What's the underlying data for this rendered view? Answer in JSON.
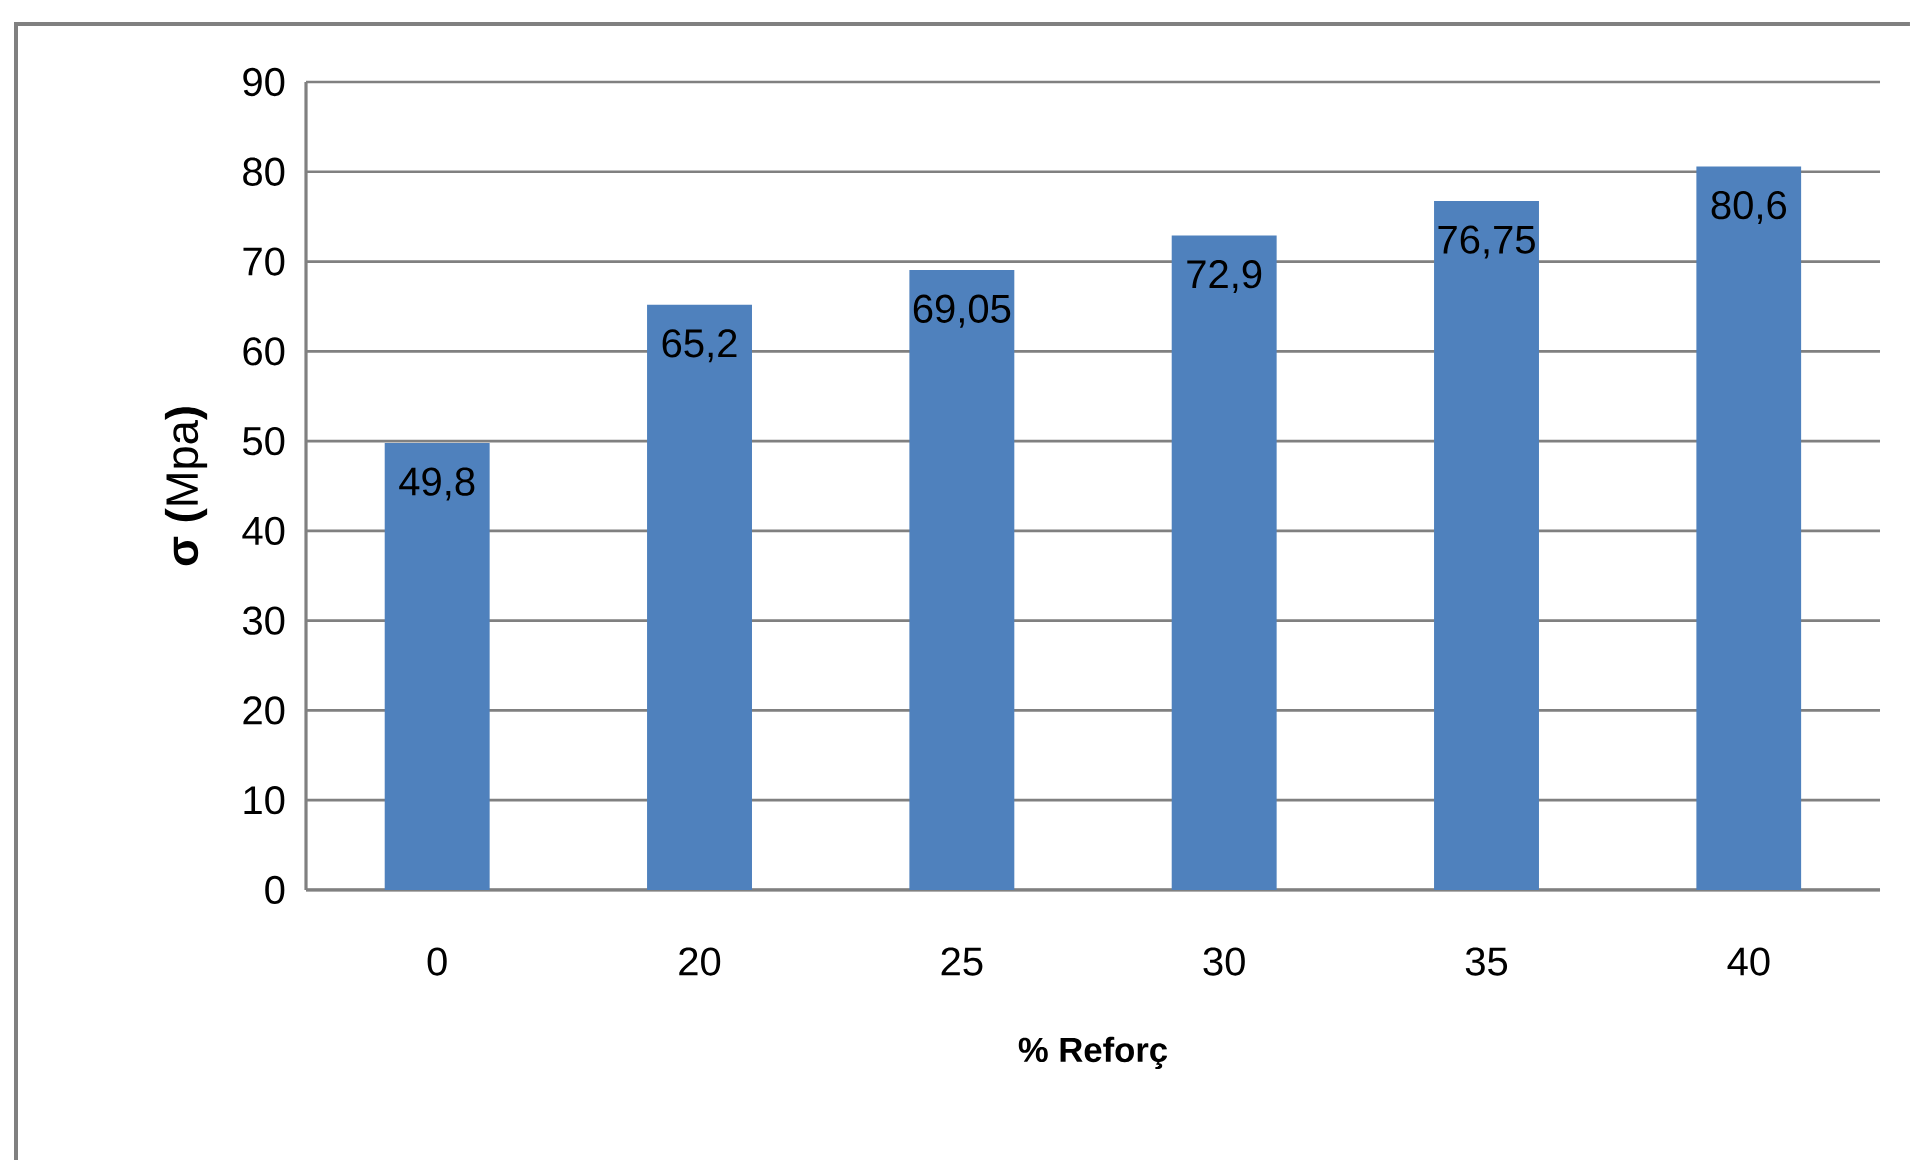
{
  "chart_data": {
    "type": "bar",
    "xlabel": "% Reforç",
    "ylabel": "**σ (**Mpa**)**",
    "categories": [
      "0",
      "20",
      "25",
      "30",
      "35",
      "40"
    ],
    "values": [
      49.8,
      65.2,
      69.05,
      72.9,
      76.75,
      80.6
    ],
    "value_labels": [
      "49,8",
      "65,2",
      "69,05",
      "72,9",
      "76,75",
      "80,6"
    ],
    "color": "#4f81bd",
    "ylim": [
      0,
      90
    ],
    "yticks": [
      0,
      10,
      20,
      30,
      40,
      50,
      60,
      70,
      80,
      90
    ],
    "grid": "y"
  }
}
